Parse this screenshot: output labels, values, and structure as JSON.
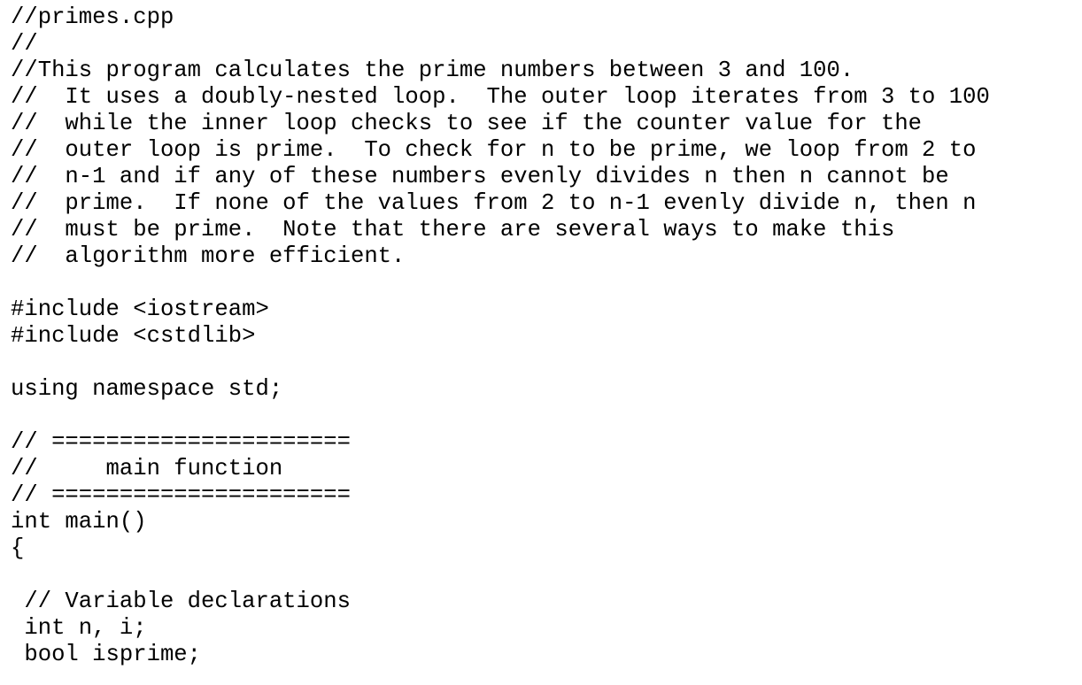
{
  "document": {
    "lines": [
      "//primes.cpp",
      "//",
      "//This program calculates the prime numbers between 3 and 100.",
      "//  It uses a doubly-nested loop.  The outer loop iterates from 3 to 100",
      "//  while the inner loop checks to see if the counter value for the",
      "//  outer loop is prime.  To check for n to be prime, we loop from 2 to",
      "//  n-1 and if any of these numbers evenly divides n then n cannot be",
      "//  prime.  If none of the values from 2 to n-1 evenly divide n, then n",
      "//  must be prime.  Note that there are several ways to make this",
      "//  algorithm more efficient.",
      "",
      "#include <iostream>",
      "#include <cstdlib>",
      "",
      "using namespace std;",
      "",
      "// ======================",
      "//     main function",
      "// ======================",
      "int main()",
      "{",
      "",
      " // Variable declarations",
      " int n, i;",
      " bool isprime;"
    ]
  }
}
